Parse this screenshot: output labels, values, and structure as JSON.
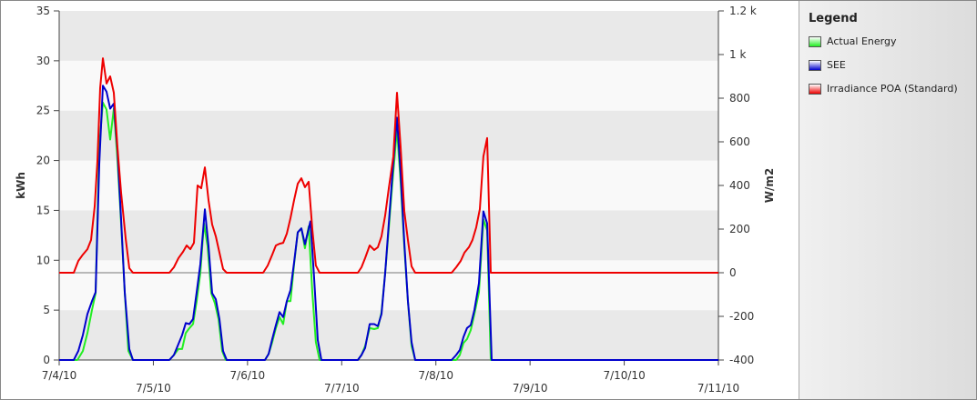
{
  "chart_data": {
    "type": "line",
    "ylabel": "kWh",
    "y2label": "W/m2",
    "legend_title": "Legend",
    "grid": "bands",
    "xlim": [
      0,
      7
    ],
    "xticks": [
      {
        "value": 0,
        "label": "7/4/10"
      },
      {
        "value": 1,
        "label": "7/5/10"
      },
      {
        "value": 2,
        "label": "7/6/10"
      },
      {
        "value": 3,
        "label": "7/7/10"
      },
      {
        "value": 4,
        "label": "7/8/10"
      },
      {
        "value": 5,
        "label": "7/9/10"
      },
      {
        "value": 6,
        "label": "7/10/10"
      },
      {
        "value": 7,
        "label": "7/11/10"
      }
    ],
    "ylim": [
      0,
      35
    ],
    "yticks": [
      0,
      5,
      10,
      15,
      20,
      25,
      30,
      35
    ],
    "y2lim": [
      -400,
      1200
    ],
    "y2ticks": [
      -400,
      -200,
      0,
      200,
      400,
      600,
      800,
      {
        "value": 1000,
        "label": "1 k"
      },
      {
        "value": 1200,
        "label": "1.2 k"
      }
    ],
    "series": [
      {
        "name": "Actual Energy",
        "color": "#22ee22",
        "x": [
          0,
          0.193,
          0.251,
          0.3,
          0.348,
          0.387,
          0.425,
          0.464,
          0.503,
          0.541,
          0.58,
          0.619,
          0.657,
          0.696,
          0.735,
          0.783,
          1.17,
          1.218,
          1.267,
          1.305,
          1.344,
          1.383,
          1.421,
          1.46,
          1.499,
          1.537,
          1.576,
          1.615,
          1.653,
          1.692,
          1.731,
          1.769,
          2.185,
          2.224,
          2.262,
          2.301,
          2.34,
          2.378,
          2.417,
          2.456,
          2.494,
          2.533,
          2.572,
          2.61,
          2.649,
          2.688,
          2.726,
          2.765,
          3.171,
          3.21,
          3.249,
          3.297,
          3.345,
          3.384,
          3.423,
          3.461,
          3.5,
          3.539,
          3.587,
          3.626,
          3.664,
          3.703,
          3.742,
          3.78,
          4.215,
          4.254,
          4.293,
          4.331,
          4.37,
          4.409,
          4.457,
          4.505,
          4.544,
          4.583,
          7
        ],
        "values": [
          0,
          0,
          0.9,
          2.7,
          5.0,
          6.7,
          21.4,
          25.8,
          25.1,
          22.1,
          25.2,
          20.1,
          13.7,
          6.8,
          0.9,
          0,
          0,
          0.5,
          1.1,
          1.1,
          2.7,
          3.2,
          3.6,
          5.9,
          8.7,
          13.7,
          11.4,
          6.7,
          5.7,
          4.1,
          0.9,
          0,
          0,
          0.6,
          1.8,
          3.2,
          4.3,
          3.6,
          5.9,
          5.9,
          9.6,
          12.8,
          13.2,
          11.2,
          13.4,
          6.8,
          1.8,
          0,
          0,
          0.5,
          1.4,
          3.2,
          3.1,
          3.2,
          4.8,
          8.7,
          13.2,
          17.8,
          23.2,
          17.8,
          11.4,
          5.9,
          1.4,
          0,
          0,
          0.5,
          1.7,
          2.1,
          3.0,
          4.6,
          6.8,
          14.1,
          13.0,
          0,
          0
        ]
      },
      {
        "name": "SEE",
        "color": "#0000cc",
        "x": [
          0,
          0.155,
          0.203,
          0.251,
          0.3,
          0.348,
          0.387,
          0.425,
          0.464,
          0.503,
          0.541,
          0.58,
          0.619,
          0.657,
          0.696,
          0.744,
          0.783,
          1.17,
          1.218,
          1.267,
          1.305,
          1.344,
          1.383,
          1.421,
          1.46,
          1.499,
          1.547,
          1.586,
          1.624,
          1.663,
          1.702,
          1.74,
          1.779,
          2.185,
          2.224,
          2.262,
          2.301,
          2.34,
          2.378,
          2.417,
          2.456,
          2.494,
          2.533,
          2.572,
          2.61,
          2.668,
          2.707,
          2.746,
          2.785,
          3.171,
          3.21,
          3.249,
          3.297,
          3.345,
          3.384,
          3.423,
          3.461,
          3.5,
          3.539,
          3.587,
          3.626,
          3.664,
          3.703,
          3.742,
          3.78,
          4.167,
          4.215,
          4.254,
          4.293,
          4.331,
          4.37,
          4.409,
          4.457,
          4.505,
          4.544,
          4.593,
          7
        ],
        "values": [
          0,
          0,
          0.9,
          2.5,
          4.6,
          5.9,
          6.8,
          19.6,
          27.5,
          26.9,
          25.2,
          25.7,
          21.0,
          14.1,
          6.8,
          1.1,
          0,
          0,
          0.5,
          1.6,
          2.5,
          3.7,
          3.6,
          4.1,
          6.8,
          9.6,
          15.1,
          11.4,
          6.7,
          6.1,
          4.1,
          0.9,
          0,
          0,
          0.6,
          2.1,
          3.5,
          4.8,
          4.3,
          5.9,
          7.0,
          9.8,
          12.8,
          13.2,
          11.6,
          13.9,
          8.2,
          2.0,
          0,
          0,
          0.5,
          1.2,
          3.6,
          3.6,
          3.4,
          4.6,
          8.7,
          13.7,
          18.7,
          24.3,
          18.7,
          11.8,
          5.9,
          1.8,
          0,
          0,
          0.5,
          1.0,
          2.3,
          3.2,
          3.5,
          5.0,
          7.7,
          14.9,
          13.7,
          0,
          0
        ]
      },
      {
        "name": "Irradiance POA (Standard)",
        "color": "#ee0000",
        "axis": "y2",
        "x": [
          0,
          0.155,
          0.203,
          0.251,
          0.3,
          0.338,
          0.377,
          0.406,
          0.435,
          0.464,
          0.503,
          0.541,
          0.58,
          0.619,
          0.657,
          0.706,
          0.744,
          0.783,
          1.17,
          1.218,
          1.267,
          1.315,
          1.354,
          1.392,
          1.431,
          1.47,
          1.508,
          1.547,
          1.586,
          1.624,
          1.663,
          1.702,
          1.74,
          1.779,
          2.166,
          2.214,
          2.262,
          2.301,
          2.34,
          2.378,
          2.417,
          2.456,
          2.494,
          2.533,
          2.572,
          2.61,
          2.649,
          2.688,
          2.726,
          2.765,
          3.171,
          3.21,
          3.249,
          3.297,
          3.345,
          3.384,
          3.423,
          3.461,
          3.5,
          3.548,
          3.587,
          3.626,
          3.664,
          3.703,
          3.742,
          3.78,
          4.167,
          4.215,
          4.264,
          4.303,
          4.351,
          4.389,
          4.428,
          4.467,
          4.505,
          4.544,
          4.583,
          7
        ],
        "values": [
          0,
          0,
          54,
          83,
          108,
          150,
          304,
          513,
          846,
          983,
          867,
          900,
          825,
          575,
          367,
          158,
          21,
          0,
          0,
          25,
          67,
          96,
          125,
          108,
          137,
          400,
          387,
          483,
          333,
          221,
          167,
          92,
          17,
          0,
          0,
          33,
          83,
          125,
          133,
          137,
          179,
          250,
          333,
          408,
          433,
          392,
          417,
          200,
          33,
          0,
          0,
          25,
          67,
          125,
          104,
          117,
          167,
          262,
          387,
          533,
          825,
          575,
          283,
          150,
          29,
          0,
          0,
          25,
          54,
          92,
          117,
          150,
          208,
          292,
          533,
          617,
          0,
          0
        ]
      }
    ]
  }
}
